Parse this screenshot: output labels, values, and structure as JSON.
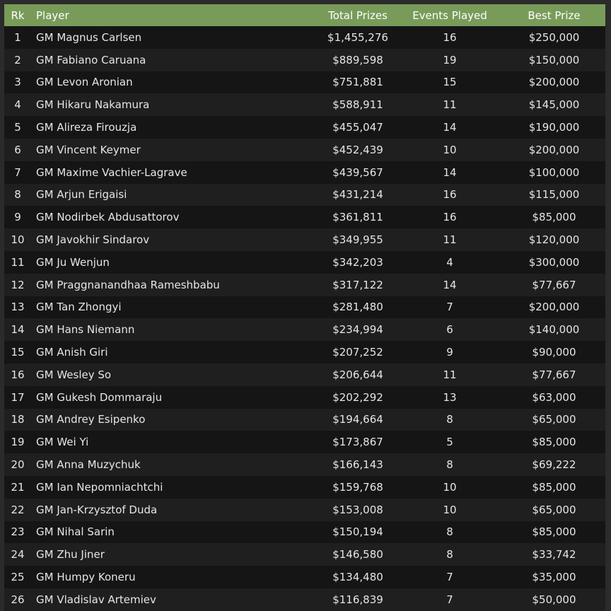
{
  "table": {
    "headers": {
      "rank": "Rk",
      "player": "Player",
      "total_prizes": "Total Prizes",
      "events_played": "Events Played",
      "best_prize": "Best Prize"
    },
    "rows": [
      {
        "rank": "1",
        "player": "GM Magnus Carlsen",
        "total_prizes": "$1,455,276",
        "events_played": "16",
        "best_prize": "$250,000"
      },
      {
        "rank": "2",
        "player": "GM Fabiano Caruana",
        "total_prizes": "$889,598",
        "events_played": "19",
        "best_prize": "$150,000"
      },
      {
        "rank": "3",
        "player": "GM Levon Aronian",
        "total_prizes": "$751,881",
        "events_played": "15",
        "best_prize": "$200,000"
      },
      {
        "rank": "4",
        "player": "GM Hikaru Nakamura",
        "total_prizes": "$588,911",
        "events_played": "11",
        "best_prize": "$145,000"
      },
      {
        "rank": "5",
        "player": "GM Alireza Firouzja",
        "total_prizes": "$455,047",
        "events_played": "14",
        "best_prize": "$190,000"
      },
      {
        "rank": "6",
        "player": "GM Vincent Keymer",
        "total_prizes": "$452,439",
        "events_played": "10",
        "best_prize": "$200,000"
      },
      {
        "rank": "7",
        "player": "GM Maxime Vachier-Lagrave",
        "total_prizes": "$439,567",
        "events_played": "14",
        "best_prize": "$100,000"
      },
      {
        "rank": "8",
        "player": "GM Arjun Erigaisi",
        "total_prizes": "$431,214",
        "events_played": "16",
        "best_prize": "$115,000"
      },
      {
        "rank": "9",
        "player": "GM Nodirbek Abdusattorov",
        "total_prizes": "$361,811",
        "events_played": "16",
        "best_prize": "$85,000"
      },
      {
        "rank": "10",
        "player": "GM Javokhir Sindarov",
        "total_prizes": "$349,955",
        "events_played": "11",
        "best_prize": "$120,000"
      },
      {
        "rank": "11",
        "player": "GM Ju Wenjun",
        "total_prizes": "$342,203",
        "events_played": "4",
        "best_prize": "$300,000"
      },
      {
        "rank": "12",
        "player": "GM Praggnanandhaa Rameshbabu",
        "total_prizes": "$317,122",
        "events_played": "14",
        "best_prize": "$77,667"
      },
      {
        "rank": "13",
        "player": "GM Tan Zhongyi",
        "total_prizes": "$281,480",
        "events_played": "7",
        "best_prize": "$200,000"
      },
      {
        "rank": "14",
        "player": "GM Hans Niemann",
        "total_prizes": "$234,994",
        "events_played": "6",
        "best_prize": "$140,000"
      },
      {
        "rank": "15",
        "player": "GM Anish Giri",
        "total_prizes": "$207,252",
        "events_played": "9",
        "best_prize": "$90,000"
      },
      {
        "rank": "16",
        "player": "GM Wesley So",
        "total_prizes": "$206,644",
        "events_played": "11",
        "best_prize": "$77,667"
      },
      {
        "rank": "17",
        "player": "GM Gukesh Dommaraju",
        "total_prizes": "$202,292",
        "events_played": "13",
        "best_prize": "$63,000"
      },
      {
        "rank": "18",
        "player": "GM Andrey Esipenko",
        "total_prizes": "$194,664",
        "events_played": "8",
        "best_prize": "$65,000"
      },
      {
        "rank": "19",
        "player": "GM Wei Yi",
        "total_prizes": "$173,867",
        "events_played": "5",
        "best_prize": "$85,000"
      },
      {
        "rank": "20",
        "player": "GM Anna Muzychuk",
        "total_prizes": "$166,143",
        "events_played": "8",
        "best_prize": "$69,222"
      },
      {
        "rank": "21",
        "player": "GM Ian Nepomniachtchi",
        "total_prizes": "$159,768",
        "events_played": "10",
        "best_prize": "$85,000"
      },
      {
        "rank": "22",
        "player": "GM Jan-Krzysztof Duda",
        "total_prizes": "$153,008",
        "events_played": "10",
        "best_prize": "$65,000"
      },
      {
        "rank": "23",
        "player": "GM Nihal Sarin",
        "total_prizes": "$150,194",
        "events_played": "8",
        "best_prize": "$85,000"
      },
      {
        "rank": "24",
        "player": "GM Zhu Jiner",
        "total_prizes": "$146,580",
        "events_played": "8",
        "best_prize": "$33,742"
      },
      {
        "rank": "25",
        "player": "GM Humpy Koneru",
        "total_prizes": "$134,480",
        "events_played": "7",
        "best_prize": "$35,000"
      },
      {
        "rank": "26",
        "player": "GM Vladislav Artemiev",
        "total_prizes": "$116,839",
        "events_played": "7",
        "best_prize": "$50,000"
      }
    ]
  },
  "colors": {
    "header_background": "#789b5a",
    "header_text": "#ffffff",
    "row_odd": "#151515",
    "row_even": "#1f1f1f",
    "cell_text": "#e6e6e6",
    "page_background": "#2b2b2b"
  }
}
